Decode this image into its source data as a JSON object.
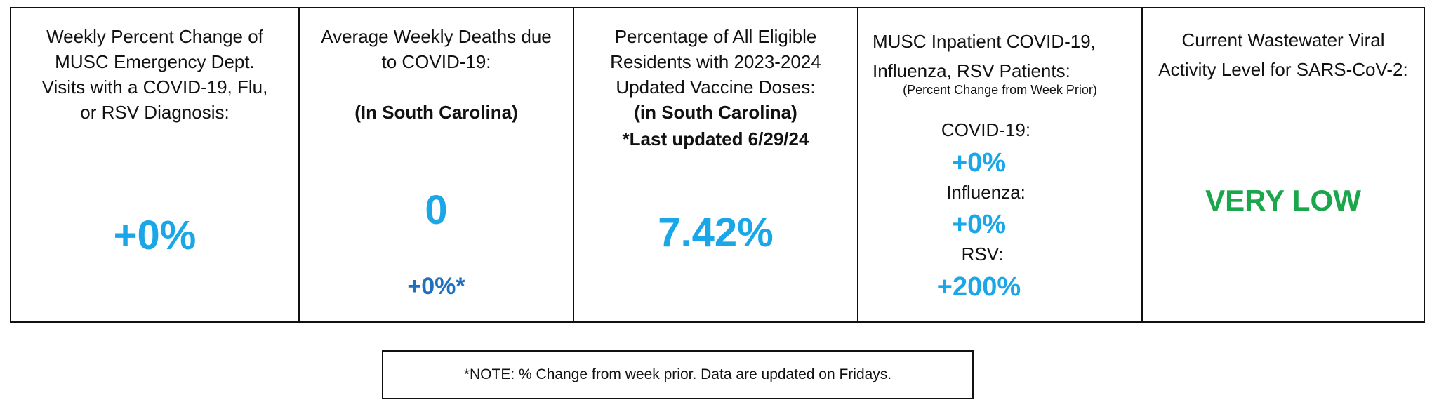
{
  "panels": [
    {
      "title": "Weekly Percent Change of MUSC Emergency Dept. Visits with a COVID-19, Flu, or RSV Diagnosis:",
      "value": "+0%"
    },
    {
      "title": "Average Weekly Deaths due to COVID-19:",
      "subtitle": "(In South Carolina)",
      "value": "0",
      "change": "+0%*"
    },
    {
      "title": "Percentage of All Eligible Residents with 2023-2024 Updated Vaccine Doses:",
      "subtitle": "(in South Carolina)",
      "note": "*Last updated 6/29/24",
      "value": "7.42%"
    },
    {
      "title": "MUSC Inpatient COVID-19, Influenza, RSV Patients:",
      "subtitle": "(Percent Change from Week Prior)",
      "items": [
        {
          "label": "COVID-19:",
          "value": "+0%"
        },
        {
          "label": "Influenza:",
          "value": "+0%"
        },
        {
          "label": "RSV:",
          "value": "+200%"
        }
      ]
    },
    {
      "title": "Current Wastewater Viral Activity Level for SARS-CoV-2:",
      "value": "VERY LOW"
    }
  ],
  "footnote": "*NOTE: % Change from week prior.  Data are updated on Fridays."
}
